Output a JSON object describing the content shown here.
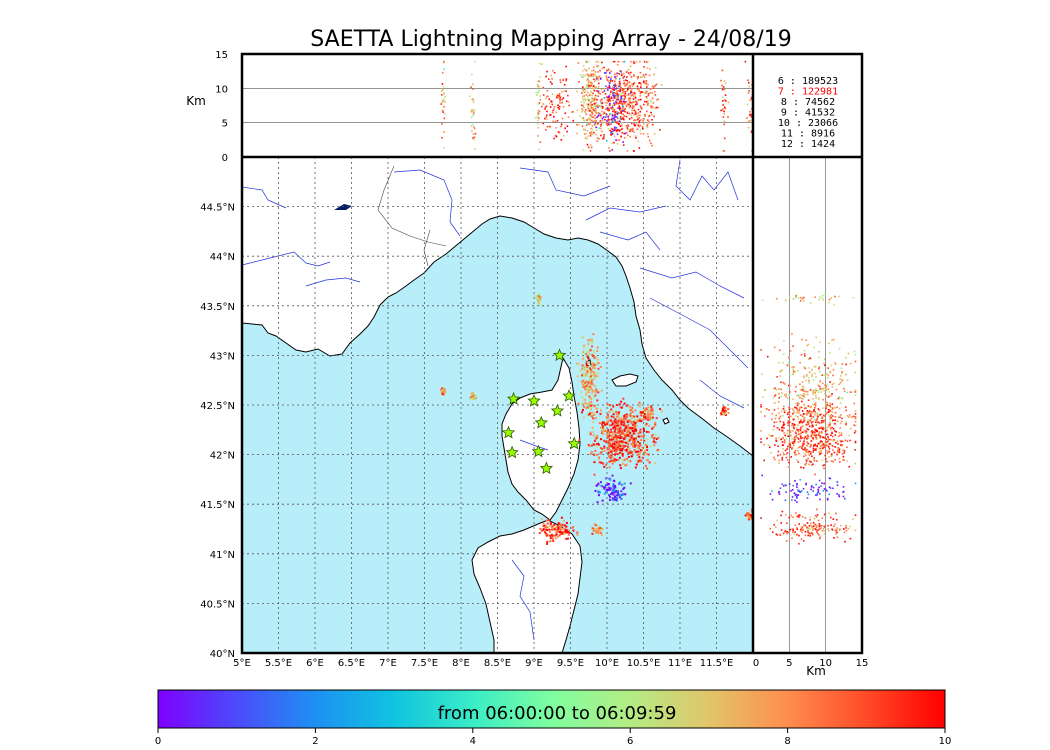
{
  "chart_data": {
    "type": "scatter",
    "title": "SAETTA Lightning Mapping Array - 24/08/19",
    "map": {
      "x_ticks": [
        "5°E",
        "5.5°E",
        "6°E",
        "6.5°E",
        "7°E",
        "7.5°E",
        "8°E",
        "8.5°E",
        "9°E",
        "9.5°E",
        "10°E",
        "10.5°E",
        "11°E",
        "11.5°E"
      ],
      "y_ticks": [
        "40°N",
        "40.5°N",
        "41°N",
        "41.5°N",
        "42°N",
        "42.5°N",
        "43°N",
        "43.5°N",
        "44°N",
        "44.5°N"
      ],
      "lon_range": [
        5,
        12
      ],
      "lat_range": [
        40,
        45
      ]
    },
    "altitude_lon_panel": {
      "ylabel": "Km",
      "y_ticks": [
        "0",
        "5",
        "10",
        "15"
      ],
      "ylim": [
        0,
        15
      ]
    },
    "altitude_lat_panel": {
      "xlabel": "Km",
      "x_ticks": [
        "0",
        "5",
        "10",
        "15"
      ],
      "xlim": [
        0,
        15
      ]
    },
    "station_counts": [
      {
        "stations": "6",
        "count": "189523",
        "highlight": false
      },
      {
        "stations": "7",
        "count": "122981",
        "highlight": true
      },
      {
        "stations": "8",
        "count": "74562",
        "highlight": false
      },
      {
        "stations": "9",
        "count": "41532",
        "highlight": false
      },
      {
        "stations": "10",
        "count": "23066",
        "highlight": false
      },
      {
        "stations": "11",
        "count": "8916",
        "highlight": false
      },
      {
        "stations": "12",
        "count": "1424",
        "highlight": false
      }
    ],
    "colorbar": {
      "label": "from 06:00:00 to 06:09:59",
      "ticks": [
        "0",
        "2",
        "4",
        "6",
        "8",
        "10"
      ],
      "range": [
        0,
        10
      ]
    },
    "stations": [
      {
        "lon": 9.35,
        "lat": 43.0
      },
      {
        "lon": 8.72,
        "lat": 42.56
      },
      {
        "lon": 9.0,
        "lat": 42.54
      },
      {
        "lon": 9.48,
        "lat": 42.59
      },
      {
        "lon": 9.32,
        "lat": 42.44
      },
      {
        "lon": 9.1,
        "lat": 42.32
      },
      {
        "lon": 8.65,
        "lat": 42.22
      },
      {
        "lon": 9.55,
        "lat": 42.11
      },
      {
        "lon": 8.7,
        "lat": 42.02
      },
      {
        "lon": 9.06,
        "lat": 42.03
      },
      {
        "lon": 9.17,
        "lat": 41.86
      }
    ],
    "lightning_clusters": [
      {
        "lon": 9.75,
        "lat": 42.75,
        "lon_spread": 0.12,
        "lat_spread": 0.35,
        "time": 7.5
      },
      {
        "lon": 10.2,
        "lat": 42.2,
        "lon_spread": 0.4,
        "lat_spread": 0.28,
        "time": 9.0
      },
      {
        "lon": 10.55,
        "lat": 42.42,
        "lon_spread": 0.12,
        "lat_spread": 0.08,
        "time": 8.2
      },
      {
        "lon": 10.05,
        "lat": 41.65,
        "lon_spread": 0.18,
        "lat_spread": 0.1,
        "time": 0.6
      },
      {
        "lon": 9.3,
        "lat": 41.25,
        "lon_spread": 0.22,
        "lat_spread": 0.1,
        "time": 9.3
      },
      {
        "lon": 9.05,
        "lat": 43.58,
        "lon_spread": 0.03,
        "lat_spread": 0.04,
        "time": 7.2
      },
      {
        "lon": 11.6,
        "lat": 42.45,
        "lon_spread": 0.04,
        "lat_spread": 0.04,
        "time": 9.0
      },
      {
        "lon": 11.95,
        "lat": 41.4,
        "lon_spread": 0.05,
        "lat_spread": 0.06,
        "time": 9.2
      },
      {
        "lon": 9.85,
        "lat": 41.25,
        "lon_spread": 0.08,
        "lat_spread": 0.05,
        "time": 7.6
      },
      {
        "lon": 7.75,
        "lat": 42.65,
        "lon_spread": 0.03,
        "lat_spread": 0.03,
        "time": 7.4
      },
      {
        "lon": 8.15,
        "lat": 42.6,
        "lon_spread": 0.03,
        "lat_spread": 0.03,
        "time": 7.3
      }
    ]
  }
}
